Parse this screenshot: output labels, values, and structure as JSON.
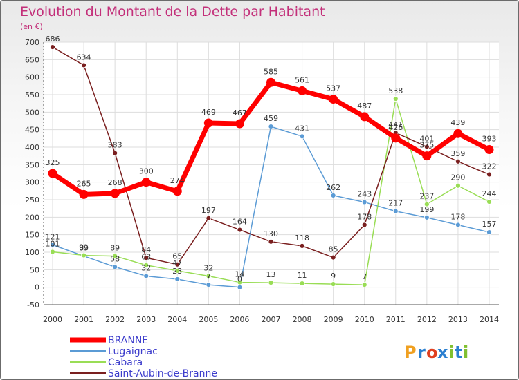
{
  "chart_data": {
    "type": "line",
    "title": "Evolution du Montant de la Dette par Habitant",
    "subtitle": "(en €)",
    "x": [
      "2000",
      "2001",
      "2002",
      "2003",
      "2004",
      "2005",
      "2006",
      "2007",
      "2008",
      "2009",
      "2010",
      "2011",
      "2012",
      "2013",
      "2014"
    ],
    "ylim": [
      -50,
      700
    ],
    "yticks": [
      -50,
      0,
      50,
      100,
      150,
      200,
      250,
      300,
      350,
      400,
      450,
      500,
      550,
      600,
      650,
      700
    ],
    "grid": true,
    "legend_position": "bottom-left",
    "series": [
      {
        "name": "BRANNE",
        "color": "#ff0000",
        "values": [
          325,
          265,
          268,
          300,
          274,
          469,
          467,
          585,
          561,
          537,
          487,
          426,
          375,
          439,
          393
        ],
        "labels": [
          "325",
          "265",
          "268",
          "300",
          "274",
          "469",
          "467",
          "585",
          "561",
          "537",
          "487",
          "426",
          "375",
          "439",
          "393"
        ]
      },
      {
        "name": "Lugaignac",
        "color": "#5b9bd5",
        "values": [
          121,
          89,
          58,
          32,
          23,
          7,
          0,
          459,
          431,
          262,
          243,
          217,
          199,
          178,
          157
        ],
        "labels": [
          "121",
          "89",
          "58",
          "32",
          "23",
          "7",
          "0",
          "459",
          "431",
          "262",
          "243",
          "217",
          "199",
          "178",
          "157"
        ]
      },
      {
        "name": "Cabara",
        "color": "#99dd55",
        "values": [
          101,
          91,
          89,
          63,
          47,
          32,
          14,
          13,
          11,
          9,
          7,
          538,
          237,
          290,
          244
        ],
        "labels": [
          "101",
          "91",
          "89",
          "63",
          "47",
          "32",
          "14",
          "13",
          "11",
          "9",
          "7",
          "538",
          "237",
          "290",
          "244"
        ]
      },
      {
        "name": "Saint-Aubin-de-Branne",
        "color": "#7a1f1f",
        "values": [
          686,
          634,
          383,
          84,
          65,
          197,
          164,
          130,
          118,
          85,
          178,
          441,
          401,
          359,
          322
        ],
        "labels": [
          "686",
          "634",
          "383",
          "84",
          "65",
          "197",
          "164",
          "130",
          "118",
          "85",
          "178",
          "441",
          "401",
          "359",
          "322"
        ]
      }
    ]
  },
  "branding": {
    "logo_text": "Proxiti",
    "logo_letters": [
      "P",
      "r",
      "o",
      "x",
      "i",
      "t",
      "i"
    ]
  }
}
